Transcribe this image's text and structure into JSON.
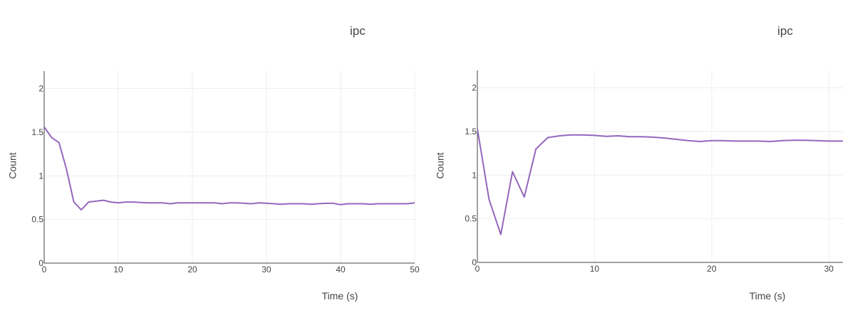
{
  "chart_data": [
    {
      "type": "line",
      "title": "ipc",
      "xlabel": "Time (s)",
      "ylabel": "Count",
      "xlim": [
        0,
        50
      ],
      "ylim": [
        0,
        2.2
      ],
      "x_ticks": [
        0,
        10,
        20,
        30,
        40,
        50
      ],
      "y_ticks": [
        0,
        0.5,
        1,
        1.5,
        2
      ],
      "x_tick_labels": [
        "0",
        "10",
        "20",
        "30",
        "40",
        "50"
      ],
      "y_tick_labels": [
        "0",
        "0.5",
        "1",
        "1.5",
        "2"
      ],
      "grid": true,
      "color": "#9467bd",
      "series": [
        {
          "x": [
            0,
            1,
            2,
            3,
            4,
            5,
            6,
            7,
            8,
            9,
            10,
            11,
            12,
            13,
            14,
            15,
            16,
            17,
            18,
            19,
            20,
            21,
            22,
            23,
            24,
            25,
            26,
            27,
            28,
            29,
            30,
            31,
            32,
            33,
            34,
            35,
            36,
            37,
            38,
            39,
            40,
            41,
            42,
            43,
            44,
            45,
            46,
            47,
            48,
            49,
            50
          ],
          "y": [
            1.56,
            1.44,
            1.38,
            1.08,
            0.7,
            0.61,
            0.7,
            0.71,
            0.72,
            0.7,
            0.69,
            0.7,
            0.7,
            0.695,
            0.69,
            0.69,
            0.69,
            0.68,
            0.69,
            0.69,
            0.69,
            0.69,
            0.69,
            0.69,
            0.68,
            0.69,
            0.69,
            0.685,
            0.68,
            0.69,
            0.685,
            0.68,
            0.675,
            0.68,
            0.68,
            0.68,
            0.675,
            0.68,
            0.685,
            0.685,
            0.67,
            0.68,
            0.68,
            0.68,
            0.675,
            0.68,
            0.68,
            0.68,
            0.68,
            0.68,
            0.69
          ]
        }
      ]
    },
    {
      "type": "line",
      "title": "ipc",
      "xlabel": "Time (s)",
      "ylabel": "Count",
      "xlim": [
        0,
        31.2
      ],
      "ylim": [
        0,
        2.2
      ],
      "x_ticks": [
        0,
        10,
        20,
        30
      ],
      "y_ticks": [
        0,
        0.5,
        1,
        1.5,
        2
      ],
      "x_tick_labels": [
        "0",
        "10",
        "20",
        "30"
      ],
      "y_tick_labels": [
        "0",
        "0.5",
        "1",
        "1.5",
        "2"
      ],
      "grid": true,
      "color": "#9467bd",
      "series": [
        {
          "x": [
            0,
            1,
            2,
            3,
            4,
            5,
            6,
            7,
            8,
            9,
            10,
            11,
            12,
            13,
            14,
            15,
            16,
            17,
            18,
            19,
            20,
            21,
            22,
            23,
            24,
            25,
            26,
            27,
            28,
            29,
            30,
            31,
            31.2
          ],
          "y": [
            1.53,
            0.72,
            0.32,
            1.04,
            0.75,
            1.3,
            1.43,
            1.45,
            1.46,
            1.46,
            1.455,
            1.445,
            1.45,
            1.44,
            1.44,
            1.435,
            1.425,
            1.41,
            1.395,
            1.385,
            1.395,
            1.395,
            1.39,
            1.39,
            1.39,
            1.385,
            1.395,
            1.4,
            1.4,
            1.395,
            1.39,
            1.39,
            1.39
          ]
        }
      ]
    }
  ]
}
